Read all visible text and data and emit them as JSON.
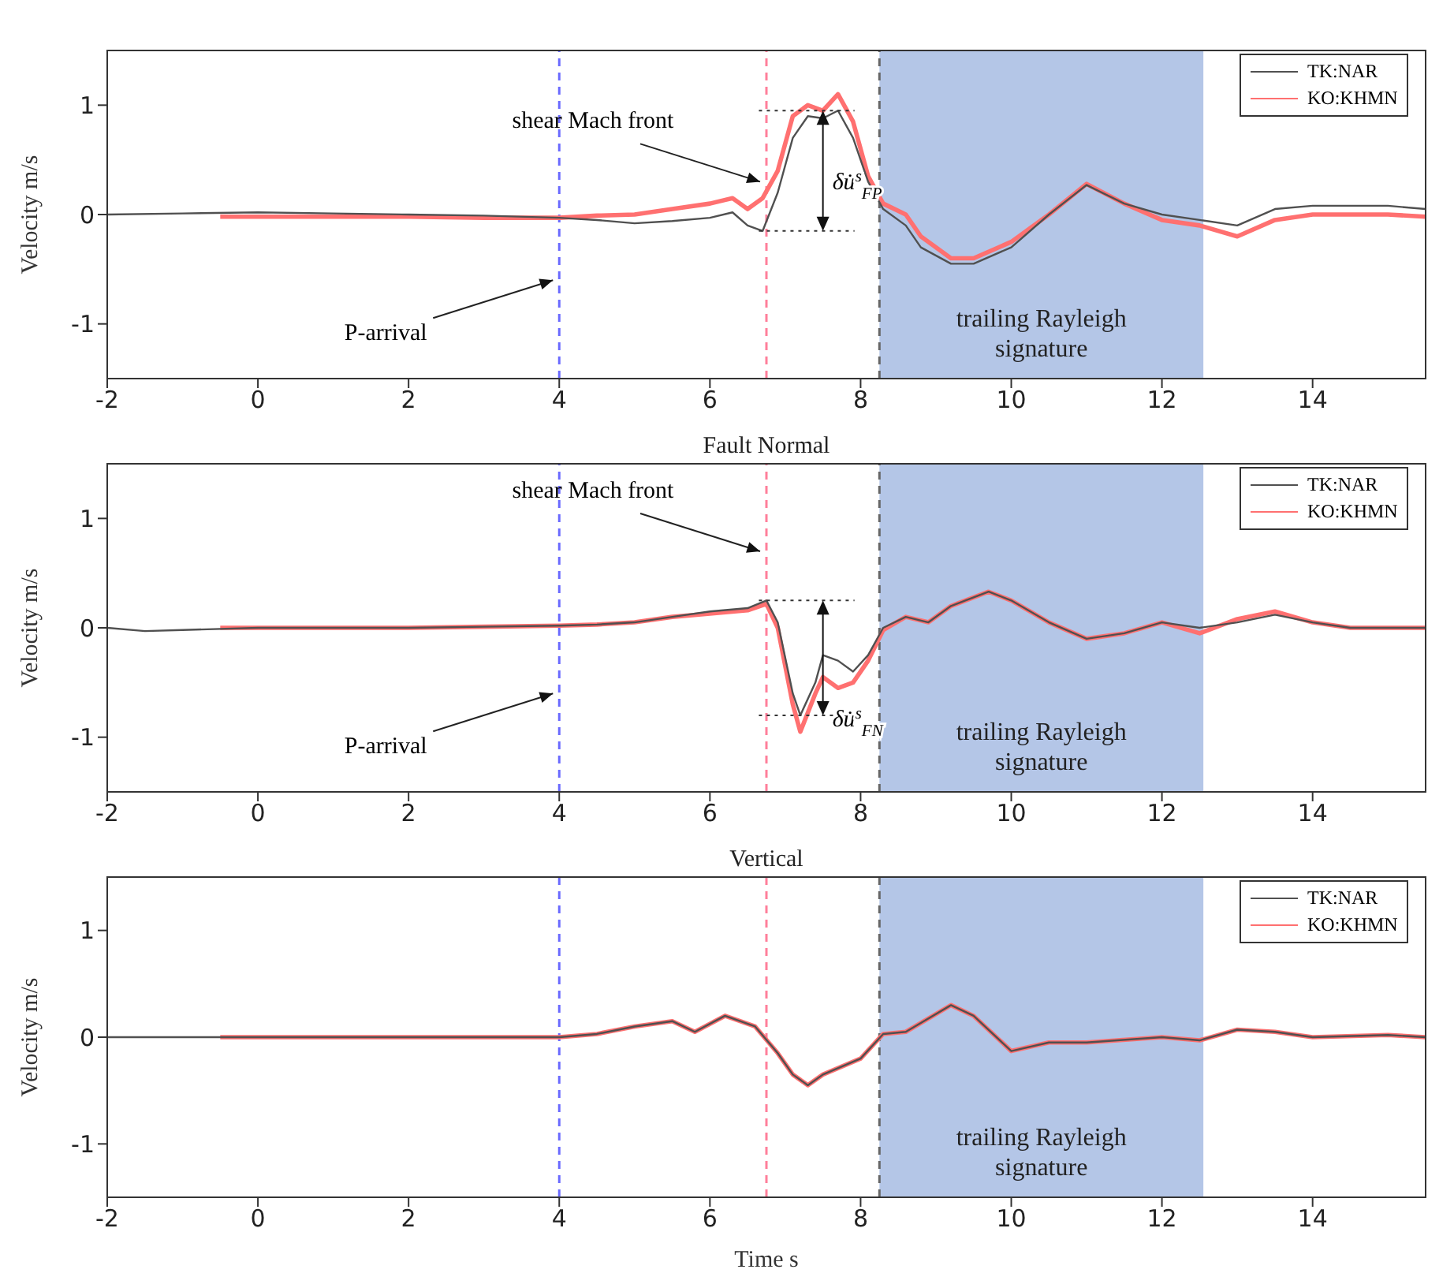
{
  "chart_data": [
    {
      "type": "line",
      "ylabel": "Velocity m/s",
      "xlim": [
        -2,
        15.5
      ],
      "xticks": [
        -2,
        0,
        2,
        4,
        6,
        8,
        10,
        12,
        14
      ],
      "ylim": [
        -1.5,
        1.5
      ],
      "yticks": [
        -1,
        0,
        1
      ],
      "legend": "top right",
      "series": [
        {
          "name": "TK:NAR",
          "color": "#505050",
          "x": [
            -2,
            -1,
            0,
            1,
            2,
            3,
            4,
            4.5,
            5,
            5.5,
            6,
            6.3,
            6.5,
            6.7,
            6.9,
            7.1,
            7.3,
            7.5,
            7.7,
            7.9,
            8.1,
            8.3,
            8.6,
            8.8,
            9.2,
            9.5,
            10,
            10.5,
            11,
            11.5,
            12,
            12.5,
            13,
            13.5,
            14,
            15,
            15.5
          ],
          "values": [
            0,
            0.01,
            0.02,
            0.01,
            0,
            -0.01,
            -0.03,
            -0.05,
            -0.08,
            -0.06,
            -0.03,
            0.02,
            -0.1,
            -0.15,
            0.2,
            0.7,
            0.9,
            0.88,
            0.95,
            0.7,
            0.3,
            0.05,
            -0.1,
            -0.3,
            -0.45,
            -0.45,
            -0.3,
            0,
            0.27,
            0.1,
            0,
            -0.05,
            -0.1,
            0.05,
            0.08,
            0.08,
            0.05
          ]
        },
        {
          "name": "KO:KHMN",
          "color": "#ff7070",
          "x": [
            -0.5,
            1,
            2,
            3,
            4,
            4.5,
            5,
            5.5,
            6,
            6.3,
            6.5,
            6.7,
            6.9,
            7.1,
            7.3,
            7.5,
            7.7,
            7.9,
            8.1,
            8.3,
            8.6,
            8.8,
            9.2,
            9.5,
            10,
            10.5,
            11,
            11.5,
            12,
            12.5,
            13,
            13.5,
            14,
            15,
            15.5
          ],
          "values": [
            -0.02,
            -0.02,
            -0.02,
            -0.03,
            -0.03,
            -0.01,
            0,
            0.05,
            0.1,
            0.15,
            0.05,
            0.15,
            0.4,
            0.9,
            1,
            0.95,
            1.1,
            0.85,
            0.35,
            0.1,
            0,
            -0.2,
            -0.4,
            -0.4,
            -0.25,
            0,
            0.28,
            0.1,
            -0.05,
            -0.1,
            -0.2,
            -0.05,
            0,
            0,
            -0.02
          ]
        }
      ],
      "ref_lines": [
        {
          "axis": "x",
          "value": 4,
          "color": "#6a6aff",
          "line_style": "dashed"
        },
        {
          "axis": "x",
          "value": 6.75,
          "color": "#ff7f9a",
          "line_style": "dashed"
        },
        {
          "axis": "x",
          "value": 8.25,
          "color": "#666666",
          "line_style": "dashed"
        }
      ],
      "bands": [
        {
          "axis": "x",
          "from": 8.25,
          "to": 12.55,
          "label": "trailing Rayleigh signature",
          "color": "#b4c6e7"
        }
      ],
      "annotations": [
        {
          "text": "P-arrival",
          "x": 4,
          "y": -0.6
        },
        {
          "text": "shear Mach front",
          "x": 6.75,
          "y": 0.3
        },
        {
          "text": "δu̇$^{s}$$_{FP}$",
          "x": 7.5,
          "y": 0.88
        }
      ]
    },
    {
      "type": "line",
      "title": "Fault Normal",
      "ylabel": "Velocity m/s",
      "xlim": [
        -2,
        15.5
      ],
      "xticks": [
        -2,
        0,
        2,
        4,
        6,
        8,
        10,
        12,
        14
      ],
      "ylim": [
        -1.5,
        1.5
      ],
      "yticks": [
        -1,
        0,
        1
      ],
      "legend": "top right",
      "series": [
        {
          "name": "TK:NAR",
          "color": "#505050",
          "x": [
            -2,
            -1.5,
            -1,
            0,
            1,
            2,
            3,
            4,
            4.5,
            5,
            5.5,
            6,
            6.5,
            6.75,
            6.9,
            7.1,
            7.2,
            7.4,
            7.5,
            7.7,
            7.9,
            8.1,
            8.3,
            8.6,
            8.9,
            9.2,
            9.7,
            10,
            10.5,
            11,
            11.5,
            12,
            12.5,
            13,
            13.5,
            14,
            14.5,
            15.5
          ],
          "values": [
            0,
            -0.03,
            -0.02,
            0,
            0,
            0,
            0.01,
            0.02,
            0.03,
            0.05,
            0.1,
            0.15,
            0.18,
            0.25,
            0.05,
            -0.6,
            -0.8,
            -0.5,
            -0.25,
            -0.3,
            -0.4,
            -0.25,
            0,
            0.1,
            0.05,
            0.2,
            0.33,
            0.25,
            0.05,
            -0.1,
            -0.05,
            0.05,
            0,
            0.05,
            0.12,
            0.05,
            0,
            0
          ]
        },
        {
          "name": "KO:KHMN",
          "color": "#ff7070",
          "x": [
            -0.5,
            1,
            2,
            3,
            4,
            4.5,
            5,
            5.5,
            6,
            6.5,
            6.75,
            6.9,
            7.1,
            7.2,
            7.4,
            7.5,
            7.7,
            7.9,
            8.1,
            8.3,
            8.6,
            8.9,
            9.2,
            9.7,
            10,
            10.5,
            11,
            11.5,
            12,
            12.5,
            13,
            13.5,
            14,
            14.5,
            15.5
          ],
          "values": [
            0,
            0,
            0,
            0.01,
            0.02,
            0.03,
            0.05,
            0.1,
            0.13,
            0.16,
            0.22,
            0,
            -0.7,
            -0.95,
            -0.6,
            -0.45,
            -0.55,
            -0.5,
            -0.3,
            -0.02,
            0.1,
            0.05,
            0.2,
            0.33,
            0.25,
            0.05,
            -0.1,
            -0.05,
            0.05,
            -0.05,
            0.08,
            0.15,
            0.05,
            0,
            0
          ]
        }
      ],
      "ref_lines": [
        {
          "axis": "x",
          "value": 4,
          "color": "#6a6aff",
          "line_style": "dashed"
        },
        {
          "axis": "x",
          "value": 6.75,
          "color": "#ff7f9a",
          "line_style": "dashed"
        },
        {
          "axis": "x",
          "value": 8.25,
          "color": "#666666",
          "line_style": "dashed"
        }
      ],
      "bands": [
        {
          "axis": "x",
          "from": 8.25,
          "to": 12.55,
          "label": "trailing Rayleigh signature",
          "color": "#b4c6e7"
        }
      ],
      "annotations": [
        {
          "text": "P-arrival",
          "x": 4,
          "y": -0.6
        },
        {
          "text": "shear Mach front",
          "x": 6.75,
          "y": 0.7
        },
        {
          "text": "δu̇$^{s}$$_{FN}$",
          "x": 7.5,
          "y": -0.25
        }
      ]
    },
    {
      "type": "line",
      "title": "Vertical",
      "xlabel": "Time s",
      "ylabel": "Velocity m/s",
      "xlim": [
        -2,
        15.5
      ],
      "xticks": [
        -2,
        0,
        2,
        4,
        6,
        8,
        10,
        12,
        14
      ],
      "ylim": [
        -1.5,
        1.5
      ],
      "yticks": [
        -1,
        0,
        1
      ],
      "legend": "top right",
      "series": [
        {
          "name": "TK:NAR",
          "color": "#505050",
          "x": [
            -2,
            -1,
            0,
            1,
            2,
            3,
            4,
            4.5,
            5,
            5.5,
            5.8,
            6.2,
            6.6,
            6.9,
            7.1,
            7.3,
            7.5,
            8,
            8.3,
            8.6,
            9.2,
            9.5,
            10,
            10.5,
            11,
            12,
            12.5,
            13,
            13.5,
            14,
            15,
            15.5
          ],
          "values": [
            0,
            0,
            0,
            0,
            0,
            0,
            0,
            0.03,
            0.1,
            0.15,
            0.05,
            0.2,
            0.1,
            -0.15,
            -0.35,
            -0.45,
            -0.35,
            -0.2,
            0.03,
            0.05,
            0.3,
            0.2,
            -0.13,
            -0.05,
            -0.05,
            0,
            -0.03,
            0.07,
            0.05,
            0,
            0.02,
            0
          ]
        },
        {
          "name": "KO:KHMN",
          "color": "#ff7070",
          "x": [
            -0.5,
            1,
            2,
            3,
            4,
            4.5,
            5,
            5.5,
            5.8,
            6.2,
            6.6,
            6.9,
            7.1,
            7.3,
            7.5,
            8,
            8.3,
            8.6,
            9.2,
            9.5,
            10,
            10.5,
            11,
            12,
            12.5,
            13,
            13.5,
            14,
            15,
            15.5
          ],
          "values": [
            0,
            0,
            0,
            0,
            0,
            0.03,
            0.1,
            0.15,
            0.05,
            0.2,
            0.1,
            -0.15,
            -0.35,
            -0.45,
            -0.35,
            -0.2,
            0.03,
            0.05,
            0.3,
            0.2,
            -0.13,
            -0.05,
            -0.05,
            0,
            -0.03,
            0.07,
            0.05,
            0,
            0.02,
            0
          ]
        }
      ],
      "ref_lines": [
        {
          "axis": "x",
          "value": 4,
          "color": "#6a6aff",
          "line_style": "dashed"
        },
        {
          "axis": "x",
          "value": 6.75,
          "color": "#ff7f9a",
          "line_style": "dashed"
        },
        {
          "axis": "x",
          "value": 8.25,
          "color": "#666666",
          "line_style": "dashed"
        }
      ],
      "bands": [
        {
          "axis": "x",
          "from": 8.25,
          "to": 12.55,
          "label": "trailing Rayleigh signature",
          "color": "#b4c6e7"
        }
      ]
    }
  ]
}
